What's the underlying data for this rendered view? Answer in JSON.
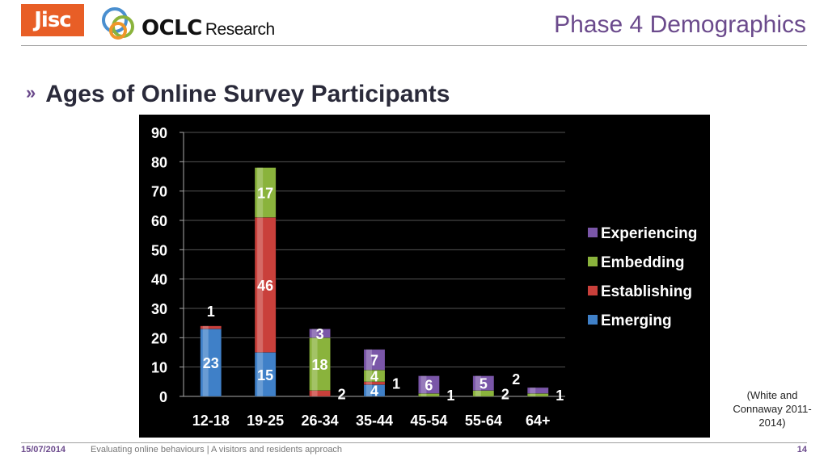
{
  "logos": {
    "jisc": "Jisc",
    "oclc": "OCLC",
    "oclc_sub": "Research"
  },
  "header": {
    "title": "Phase 4 Demographics"
  },
  "section": {
    "title": "Ages of Online Survey Participants"
  },
  "chart_data": {
    "type": "bar",
    "stacked": true,
    "categories": [
      "12-18",
      "19-25",
      "26-34",
      "35-44",
      "45-54",
      "55-64",
      "64+"
    ],
    "series": [
      {
        "name": "Emerging",
        "color": "#3f80c8",
        "values": [
          23,
          15,
          0,
          4,
          0,
          0,
          0
        ]
      },
      {
        "name": "Establishing",
        "color": "#c9403b",
        "values": [
          1,
          46,
          2,
          1,
          0,
          0,
          0
        ]
      },
      {
        "name": "Embedding",
        "color": "#8ab33c",
        "values": [
          0,
          17,
          18,
          4,
          1,
          2,
          1
        ]
      },
      {
        "name": "Experiencing",
        "color": "#7a56a8",
        "values": [
          0,
          0,
          3,
          7,
          6,
          5,
          2
        ]
      }
    ],
    "ylim": [
      0,
      90
    ],
    "yticks": [
      0,
      10,
      20,
      30,
      40,
      50,
      60,
      70,
      80,
      90
    ],
    "data_labels": [
      {
        "category": "12-18",
        "series": "Emerging",
        "text": "23",
        "color": "#ffffff"
      },
      {
        "category": "12-18",
        "series": "Establishing",
        "text": "1",
        "color": "#ffffff"
      },
      {
        "category": "19-25",
        "series": "Emerging",
        "text": "15",
        "color": "#ffffff"
      },
      {
        "category": "19-25",
        "series": "Establishing",
        "text": "46",
        "color": "#ffffff"
      },
      {
        "category": "19-25",
        "series": "Embedding",
        "text": "17",
        "color": "#ffffff"
      },
      {
        "category": "26-34",
        "series": "Establishing",
        "text": "2",
        "color": "#ffffff"
      },
      {
        "category": "26-34",
        "series": "Embedding",
        "text": "18",
        "color": "#ffffff"
      },
      {
        "category": "26-34",
        "series": "Experiencing",
        "text": "3",
        "color": "#ffffff"
      },
      {
        "category": "35-44",
        "series": "Emerging",
        "text": "4",
        "color": "#ffffff"
      },
      {
        "category": "35-44",
        "series": "Establishing",
        "text": "1",
        "color": "#ffffff"
      },
      {
        "category": "35-44",
        "series": "Embedding",
        "text": "4",
        "color": "#ffffff"
      },
      {
        "category": "35-44",
        "series": "Experiencing",
        "text": "7",
        "color": "#ffffff"
      },
      {
        "category": "45-54",
        "series": "Embedding",
        "text": "1",
        "color": "#ffffff"
      },
      {
        "category": "45-54",
        "series": "Experiencing",
        "text": "6",
        "color": "#ffffff"
      },
      {
        "category": "55-64",
        "series": "Embedding",
        "text": "2",
        "color": "#ffffff"
      },
      {
        "category": "55-64",
        "series": "Experiencing",
        "text": "5",
        "color": "#ffffff"
      },
      {
        "category": "64+",
        "series": "Embedding",
        "text": "1",
        "color": "#ffffff"
      },
      {
        "category": "64+",
        "series": "Experiencing",
        "text": "2",
        "color": "#ffffff"
      }
    ],
    "legend_order": [
      "Experiencing",
      "Embedding",
      "Establishing",
      "Emerging"
    ],
    "legend_position": "right",
    "grid": true,
    "background": "#000000",
    "text_color": "#ffffff"
  },
  "citation": {
    "text": "(White and Connaway 2011-2014)"
  },
  "footer": {
    "date": "15/07/2014",
    "text": "Evaluating online behaviours | A visitors and residents approach",
    "page": "14"
  }
}
